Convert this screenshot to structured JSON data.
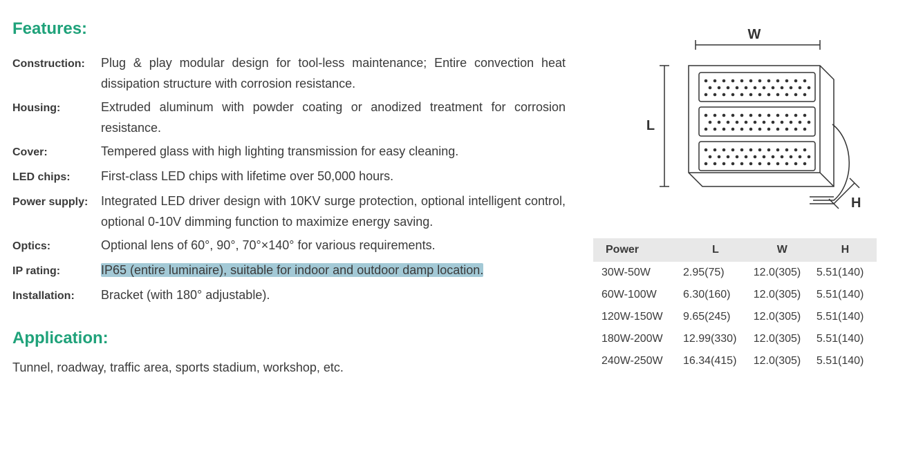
{
  "headings": {
    "features": "Features:",
    "application": "Application:"
  },
  "features_keys": {
    "construction": "Construction:",
    "housing": "Housing:",
    "cover": "Cover:",
    "led_chips": "LED chips:",
    "power_supply": "Power supply:",
    "optics": "Optics:",
    "ip_rating": "IP rating:",
    "installation": "Installation:"
  },
  "features": {
    "construction": "Plug & play modular design for tool-less maintenance; Entire convection heat dissipation structure with corrosion resistance.",
    "housing": "Extruded aluminum with powder coating or anodized treatment for corrosion resistance.",
    "cover": "Tempered glass with high lighting transmission for easy cleaning.",
    "led_chips": "First-class LED chips with lifetime over 50,000 hours.",
    "power_supply": "Integrated LED driver design with 10KV surge protection, optional intelligent control, optional 0-10V dimming function to maximize energy saving.",
    "optics": "Optional lens of 60°, 90°, 70°×140° for various requirements.",
    "ip_rating": "IP65 (entire luminaire), suitable for indoor and outdoor damp location.",
    "installation": "Bracket (with 180° adjustable)."
  },
  "application_text": "Tunnel, roadway, traffic area, sports stadium, workshop, etc.",
  "diagram_labels": {
    "W": "W",
    "L": "L",
    "H": "H"
  },
  "spec_table": {
    "columns": [
      "Power",
      "L",
      "W",
      "H"
    ],
    "rows": [
      [
        "30W-50W",
        "2.95(75)",
        "12.0(305)",
        "5.51(140)"
      ],
      [
        "60W-100W",
        "6.30(160)",
        "12.0(305)",
        "5.51(140)"
      ],
      [
        "120W-150W",
        "9.65(245)",
        "12.0(305)",
        "5.51(140)"
      ],
      [
        "180W-200W",
        "12.99(330)",
        "12.0(305)",
        "5.51(140)"
      ],
      [
        "240W-250W",
        "16.34(415)",
        "12.0(305)",
        "5.51(140)"
      ]
    ],
    "header_bg": "#e8e8e8"
  },
  "colors": {
    "heading": "#1fa27a",
    "body_text": "#3a3a3a",
    "highlight_bg": "#a3c9d6",
    "background": "#ffffff",
    "diagram_stroke": "#333333"
  }
}
